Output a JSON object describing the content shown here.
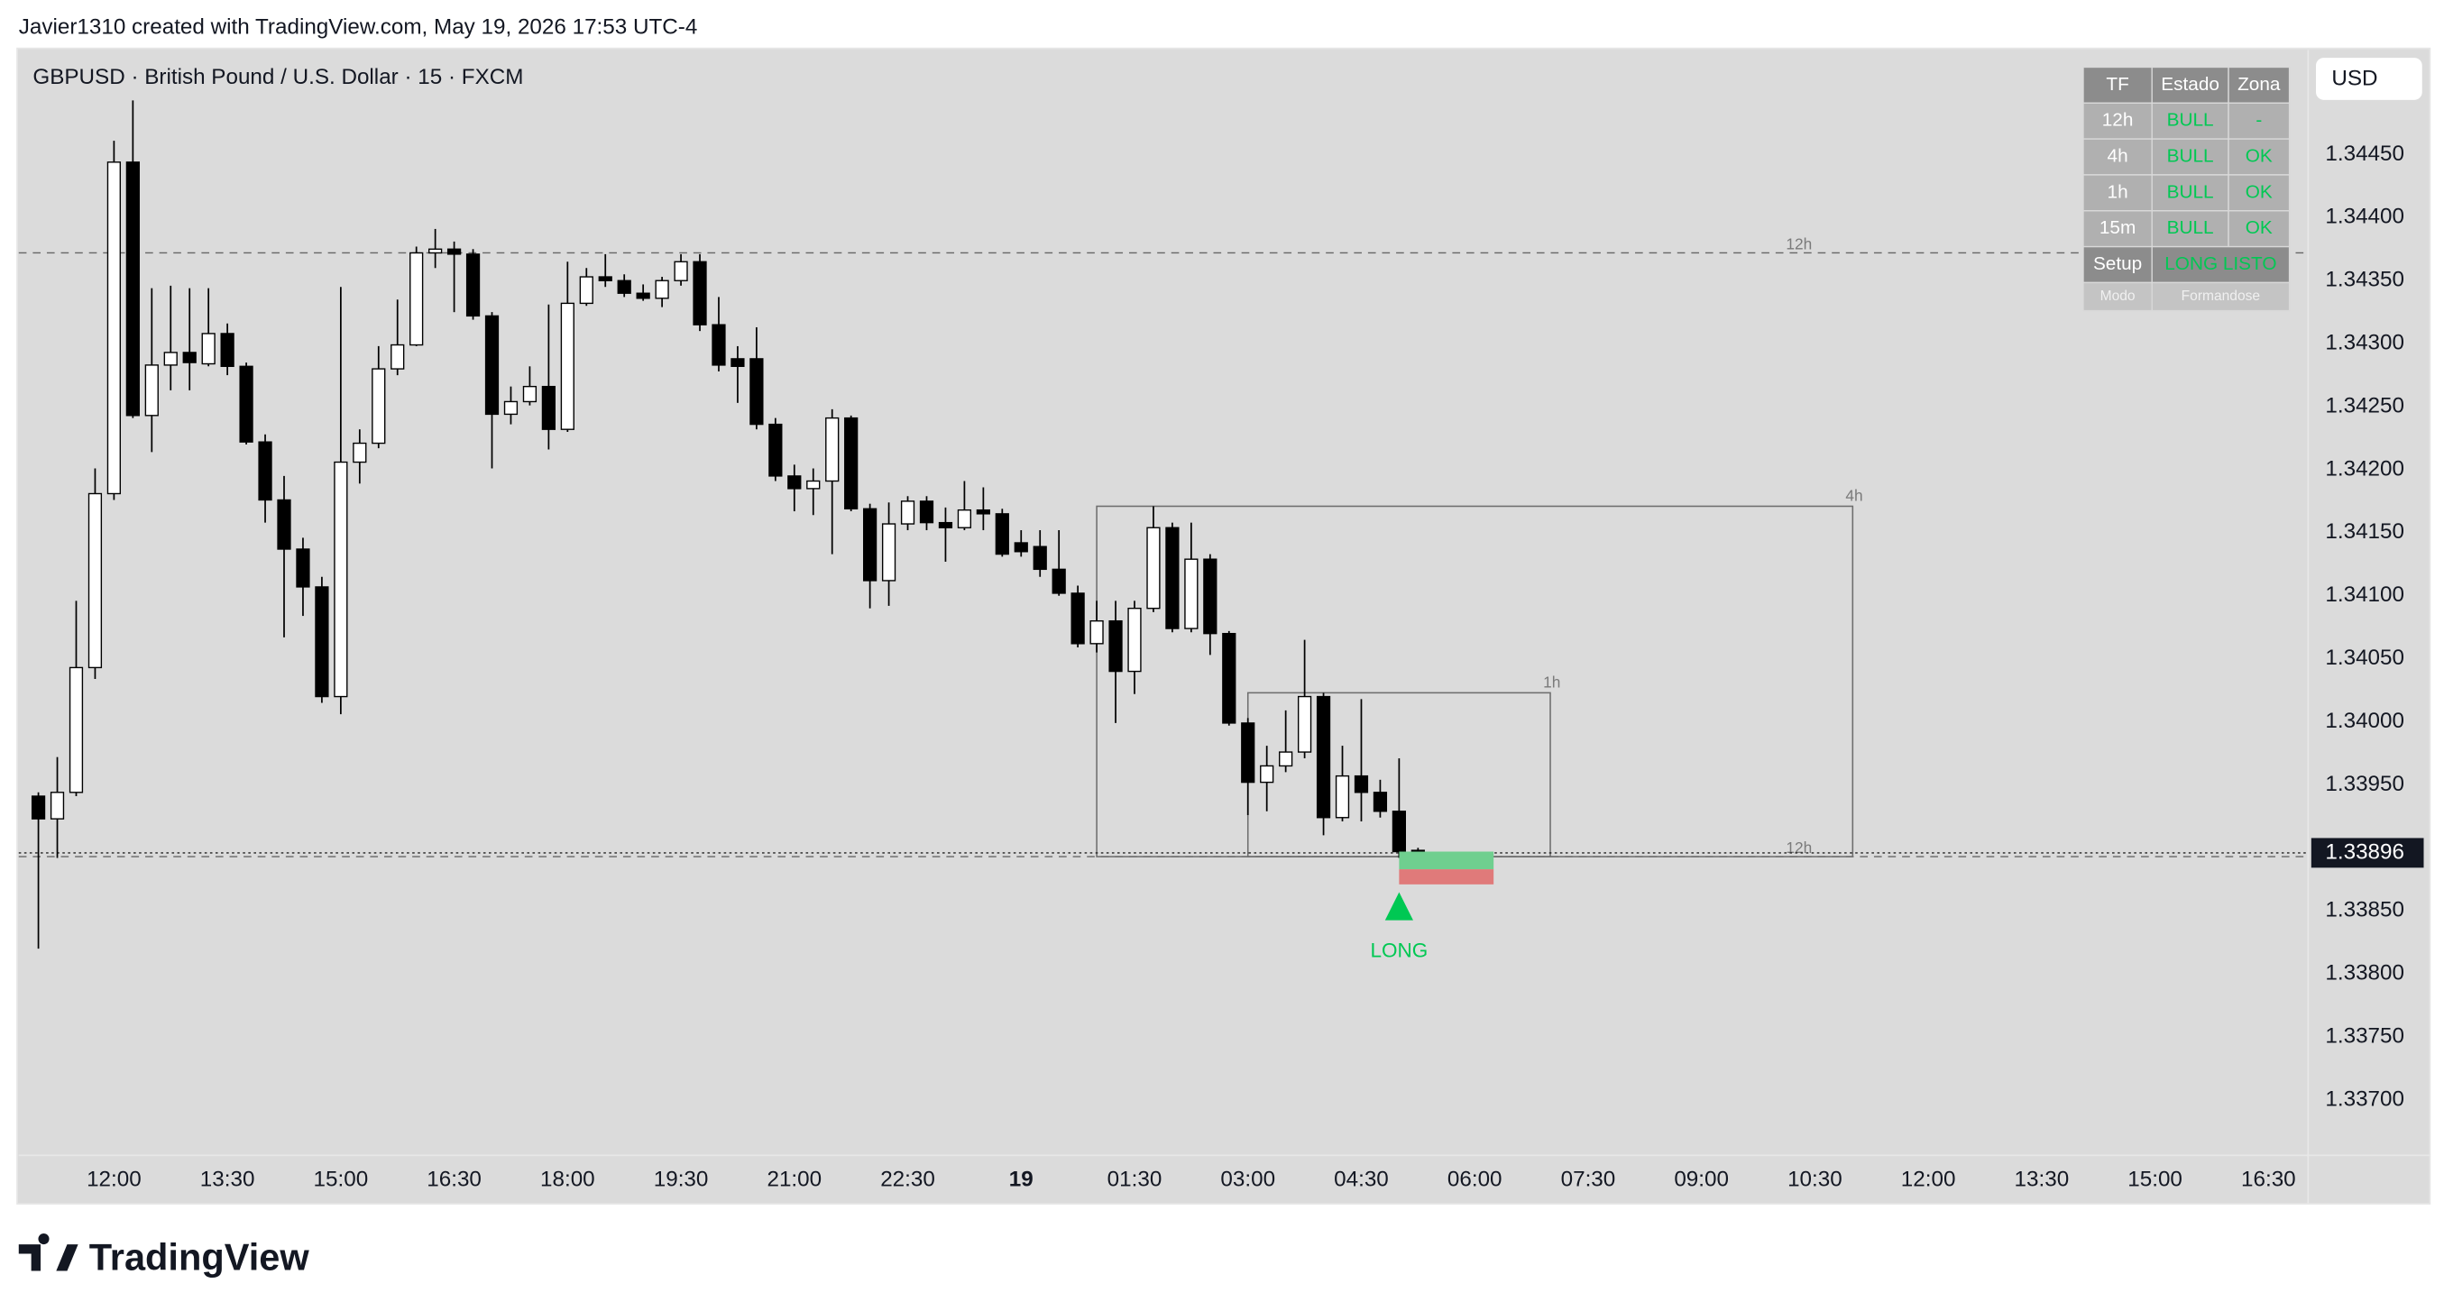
{
  "header": {
    "caption": "Javier1310 created with TradingView.com, May 19, 2026 17:53 UTC-4",
    "symbol_title": "GBPUSD · British Pound / U.S. Dollar · 15 · FXCM",
    "currency_button": "USD",
    "logo": "TradingView"
  },
  "status_table": {
    "columns": [
      "TF",
      "Estado",
      "Zona"
    ],
    "rows": [
      [
        "12h",
        "BULL",
        "-"
      ],
      [
        "4h",
        "BULL",
        "OK"
      ],
      [
        "1h",
        "BULL",
        "OK"
      ],
      [
        "15m",
        "BULL",
        "OK"
      ]
    ],
    "setup": [
      "Setup",
      "LONG LISTO"
    ],
    "mode": [
      "Modo",
      "Formandose"
    ]
  },
  "chart_data": {
    "type": "candlestick",
    "up_color": "#ffffff",
    "down_color": "#000000",
    "x": [
      -4,
      -3,
      -2,
      -1,
      0,
      1,
      2,
      3,
      4,
      5,
      6,
      7,
      8,
      9,
      10,
      11,
      12,
      13,
      14,
      15,
      16,
      17,
      18,
      19,
      20,
      21,
      22,
      23,
      24,
      25,
      26,
      27,
      28,
      29,
      30,
      31,
      32,
      33,
      34,
      35,
      36,
      37,
      38,
      39,
      40,
      41,
      42,
      43,
      44,
      45,
      46,
      47,
      48,
      49,
      50,
      51,
      52,
      53,
      54,
      55,
      56,
      57,
      58,
      59,
      60,
      61,
      62,
      63,
      64,
      65,
      66,
      67,
      68,
      69
    ],
    "open": [
      1.33941,
      1.33923,
      1.33944,
      1.34043,
      1.34181,
      1.34444,
      1.34243,
      1.34283,
      1.34293,
      1.34284,
      1.34308,
      1.34282,
      1.34222,
      1.34176,
      1.34137,
      1.34107,
      1.3402,
      1.34206,
      1.34221,
      1.3428,
      1.34299,
      1.34372,
      1.34375,
      1.34371,
      1.34322,
      1.34244,
      1.34254,
      1.34266,
      1.34232,
      1.34332,
      1.34353,
      1.3435,
      1.3434,
      1.34336,
      1.3435,
      1.34365,
      1.34315,
      1.34288,
      1.34288,
      1.34236,
      1.34195,
      1.34185,
      1.34191,
      1.34241,
      1.34169,
      1.34112,
      1.34157,
      1.34175,
      1.34158,
      1.34154,
      1.34168,
      1.34165,
      1.34142,
      1.34139,
      1.34121,
      1.34102,
      1.34062,
      1.3408,
      1.3404,
      1.3409,
      1.34154,
      1.34074,
      1.34129,
      1.3407,
      1.33999,
      1.33952,
      1.33965,
      1.33976,
      1.3402,
      1.33924,
      1.33957,
      1.33944,
      1.33929,
      1.33898
    ],
    "high": [
      1.33944,
      1.33972,
      1.34096,
      1.34201,
      1.34461,
      1.34493,
      1.34344,
      1.34346,
      1.34344,
      1.34344,
      1.34316,
      1.34285,
      1.34228,
      1.34195,
      1.34146,
      1.34115,
      1.34345,
      1.34232,
      1.34298,
      1.34335,
      1.34377,
      1.34391,
      1.34381,
      1.34375,
      1.34325,
      1.34266,
      1.34282,
      1.34331,
      1.34365,
      1.3436,
      1.34371,
      1.34355,
      1.34347,
      1.34353,
      1.34371,
      1.34371,
      1.34337,
      1.34298,
      1.34313,
      1.34241,
      1.34204,
      1.34201,
      1.34248,
      1.34243,
      1.34173,
      1.34174,
      1.34179,
      1.34179,
      1.3417,
      1.34191,
      1.34186,
      1.34169,
      1.34152,
      1.34152,
      1.34152,
      1.34108,
      1.34096,
      1.34096,
      1.34096,
      1.34171,
      1.34158,
      1.34158,
      1.34133,
      1.34072,
      1.34003,
      1.33981,
      1.34009,
      1.34065,
      1.34023,
      1.33981,
      1.34018,
      1.33954,
      1.33971,
      1.339
    ],
    "low": [
      1.3382,
      1.33892,
      1.33941,
      1.34034,
      1.34176,
      1.34241,
      1.34214,
      1.34263,
      1.34263,
      1.34282,
      1.34275,
      1.3422,
      1.34158,
      1.34067,
      1.34084,
      1.34015,
      1.34006,
      1.34189,
      1.34217,
      1.34275,
      1.34298,
      1.3436,
      1.34325,
      1.34319,
      1.34201,
      1.34236,
      1.34251,
      1.34216,
      1.3423,
      1.3433,
      1.34345,
      1.34337,
      1.34334,
      1.34329,
      1.34346,
      1.3431,
      1.34278,
      1.34253,
      1.34232,
      1.34191,
      1.34167,
      1.34164,
      1.34133,
      1.34167,
      1.3409,
      1.34092,
      1.34152,
      1.34152,
      1.34127,
      1.34152,
      1.34152,
      1.34131,
      1.34131,
      1.34115,
      1.341,
      1.34059,
      1.34055,
      1.33999,
      1.34022,
      1.34087,
      1.34071,
      1.34071,
      1.34053,
      1.33997,
      1.33926,
      1.33929,
      1.3396,
      1.33971,
      1.3391,
      1.33921,
      1.33921,
      1.33924,
      1.33892,
      1.33892
    ],
    "close": [
      1.33923,
      1.33944,
      1.34043,
      1.34181,
      1.34444,
      1.34243,
      1.34283,
      1.34293,
      1.34285,
      1.34308,
      1.34282,
      1.34222,
      1.34176,
      1.34137,
      1.34107,
      1.3402,
      1.34206,
      1.34221,
      1.3428,
      1.34299,
      1.34372,
      1.34375,
      1.34371,
      1.34322,
      1.34244,
      1.34254,
      1.34266,
      1.34232,
      1.34332,
      1.34353,
      1.3435,
      1.3434,
      1.34336,
      1.3435,
      1.34365,
      1.34315,
      1.34283,
      1.34282,
      1.34236,
      1.34195,
      1.34185,
      1.34191,
      1.34241,
      1.34169,
      1.34112,
      1.34157,
      1.34175,
      1.34158,
      1.34154,
      1.34168,
      1.34165,
      1.34133,
      1.34135,
      1.34121,
      1.34102,
      1.34062,
      1.3408,
      1.3404,
      1.3409,
      1.34154,
      1.34074,
      1.34129,
      1.3407,
      1.33999,
      1.33952,
      1.33965,
      1.33976,
      1.3402,
      1.33924,
      1.33957,
      1.33944,
      1.33929,
      1.33897,
      1.33896
    ],
    "xlim": [
      -5.04,
      116.1
    ],
    "xticks": [
      {
        "value": 0,
        "label": "12:00"
      },
      {
        "value": 6,
        "label": "13:30"
      },
      {
        "value": 12,
        "label": "15:00"
      },
      {
        "value": 18,
        "label": "16:30"
      },
      {
        "value": 24,
        "label": "18:00"
      },
      {
        "value": 30,
        "label": "19:30"
      },
      {
        "value": 36,
        "label": "21:00"
      },
      {
        "value": 42,
        "label": "22:30"
      },
      {
        "value": 48,
        "label": "19"
      },
      {
        "value": 54,
        "label": "01:30"
      },
      {
        "value": 60,
        "label": "03:00"
      },
      {
        "value": 66,
        "label": "04:30"
      },
      {
        "value": 72,
        "label": "06:00"
      },
      {
        "value": 78,
        "label": "07:30"
      },
      {
        "value": 84,
        "label": "09:00"
      },
      {
        "value": 90,
        "label": "10:30"
      },
      {
        "value": 96,
        "label": "12:00"
      },
      {
        "value": 102,
        "label": "13:30"
      },
      {
        "value": 108,
        "label": "15:00"
      },
      {
        "value": 114,
        "label": "16:30"
      }
    ],
    "ylim": [
      1.33656,
      1.34533
    ],
    "yticks": [
      {
        "value": 1.337,
        "label": "1.33700"
      },
      {
        "value": 1.3375,
        "label": "1.33750"
      },
      {
        "value": 1.338,
        "label": "1.33800"
      },
      {
        "value": 1.3385,
        "label": "1.33850"
      },
      {
        "value": 1.339,
        "label": "1.33900"
      },
      {
        "value": 1.3395,
        "label": "1.33950"
      },
      {
        "value": 1.34,
        "label": "1.34000"
      },
      {
        "value": 1.3405,
        "label": "1.34050"
      },
      {
        "value": 1.341,
        "label": "1.34100"
      },
      {
        "value": 1.3415,
        "label": "1.34150"
      },
      {
        "value": 1.342,
        "label": "1.34200"
      },
      {
        "value": 1.3425,
        "label": "1.34250"
      },
      {
        "value": 1.343,
        "label": "1.34300"
      },
      {
        "value": 1.3435,
        "label": "1.34350"
      },
      {
        "value": 1.344,
        "label": "1.34400"
      },
      {
        "value": 1.3445,
        "label": "1.34450"
      }
    ],
    "last_price": 1.33896,
    "levels": [
      {
        "label": "12h",
        "value": 1.34372
      },
      {
        "label": "12h",
        "value": 1.33893
      }
    ],
    "zones": [
      {
        "label": "4h",
        "x": [
          52,
          92
        ],
        "top": 1.34171,
        "bottom": 1.33893
      },
      {
        "label": "1h",
        "x": [
          60,
          76
        ],
        "top": 1.34023,
        "bottom": 1.33893
      }
    ],
    "position": {
      "x": [
        68,
        73
      ],
      "target": 1.33897,
      "entry": 1.33883,
      "stop": 1.33871
    },
    "signal": {
      "label": "LONG",
      "x": 68,
      "color": "#00c853"
    }
  }
}
